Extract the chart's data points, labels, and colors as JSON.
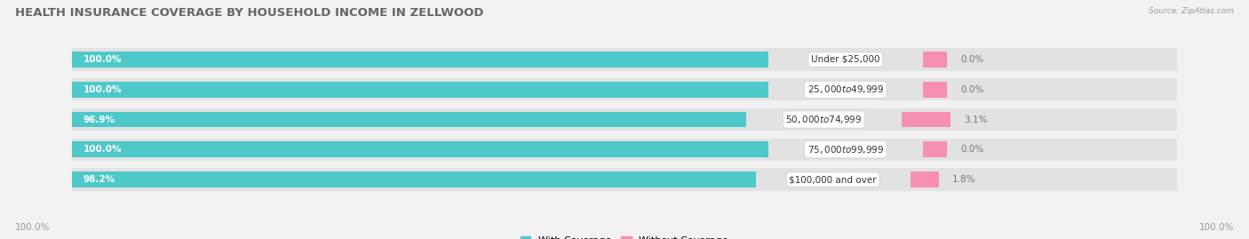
{
  "title": "HEALTH INSURANCE COVERAGE BY HOUSEHOLD INCOME IN ZELLWOOD",
  "source": "Source: ZipAtlas.com",
  "categories": [
    "Under $25,000",
    "$25,000 to $49,999",
    "$50,000 to $74,999",
    "$75,000 to $99,999",
    "$100,000 and over"
  ],
  "with_coverage": [
    100.0,
    100.0,
    96.9,
    100.0,
    98.2
  ],
  "without_coverage": [
    0.0,
    0.0,
    3.1,
    0.0,
    1.8
  ],
  "color_with": "#4EC8C8",
  "color_without": "#F78FB3",
  "bg_color": "#f2f2f2",
  "bar_bg_color": "#e2e2e2",
  "title_fontsize": 9.5,
  "label_fontsize": 7.5,
  "tick_fontsize": 7.5,
  "legend_fontsize": 8,
  "bottom_left_label": "100.0%",
  "bottom_right_label": "100.0%"
}
